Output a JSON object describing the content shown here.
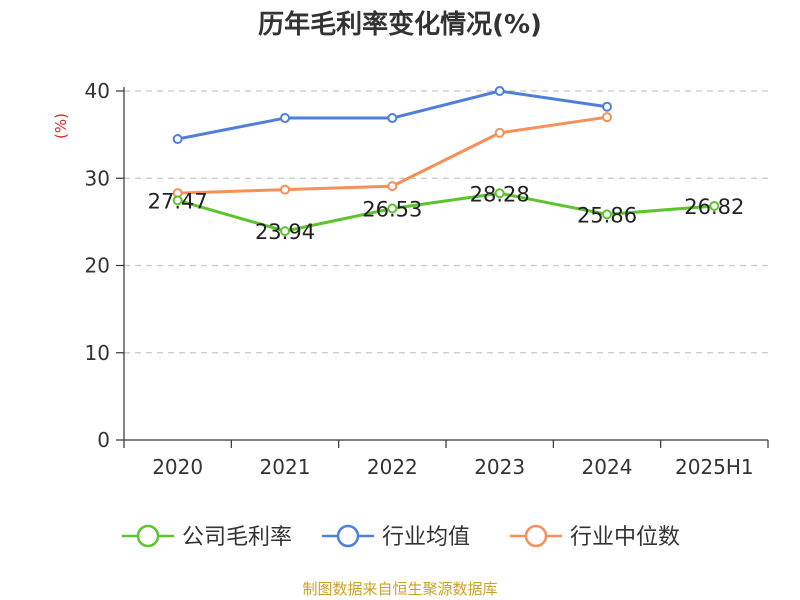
{
  "title": "历年毛利率变化情况(%)",
  "source": "制图数据来自恒生聚源数据库",
  "colors": {
    "company": "#5cc42e",
    "industry_avg": "#4f7fdb",
    "industry_median": "#f5905a",
    "unit_label": "#d62728",
    "source": "#c9a227"
  },
  "chart_data": {
    "type": "line",
    "title": "历年毛利率变化情况(%)",
    "ylabel": "(%)",
    "xlabel": "",
    "categories": [
      "2020",
      "2021",
      "2022",
      "2023",
      "2024",
      "2025H1"
    ],
    "y_ticks": [
      "0",
      "10",
      "20",
      "30",
      "40"
    ],
    "ylim": [
      0,
      40
    ],
    "grid": true,
    "legend_position": "bottom",
    "series": [
      {
        "name": "公司毛利率",
        "values": [
          27.47,
          23.94,
          26.53,
          28.28,
          25.86,
          26.82
        ],
        "labels": [
          "27.47",
          "23.94",
          "26.53",
          "28.28",
          "25.86",
          "26.82"
        ]
      },
      {
        "name": "行业均值",
        "values": [
          34.5,
          36.9,
          36.9,
          40.0,
          38.2,
          null
        ]
      },
      {
        "name": "行业中位数",
        "values": [
          28.3,
          28.7,
          29.1,
          35.2,
          37.0,
          null
        ]
      }
    ]
  }
}
